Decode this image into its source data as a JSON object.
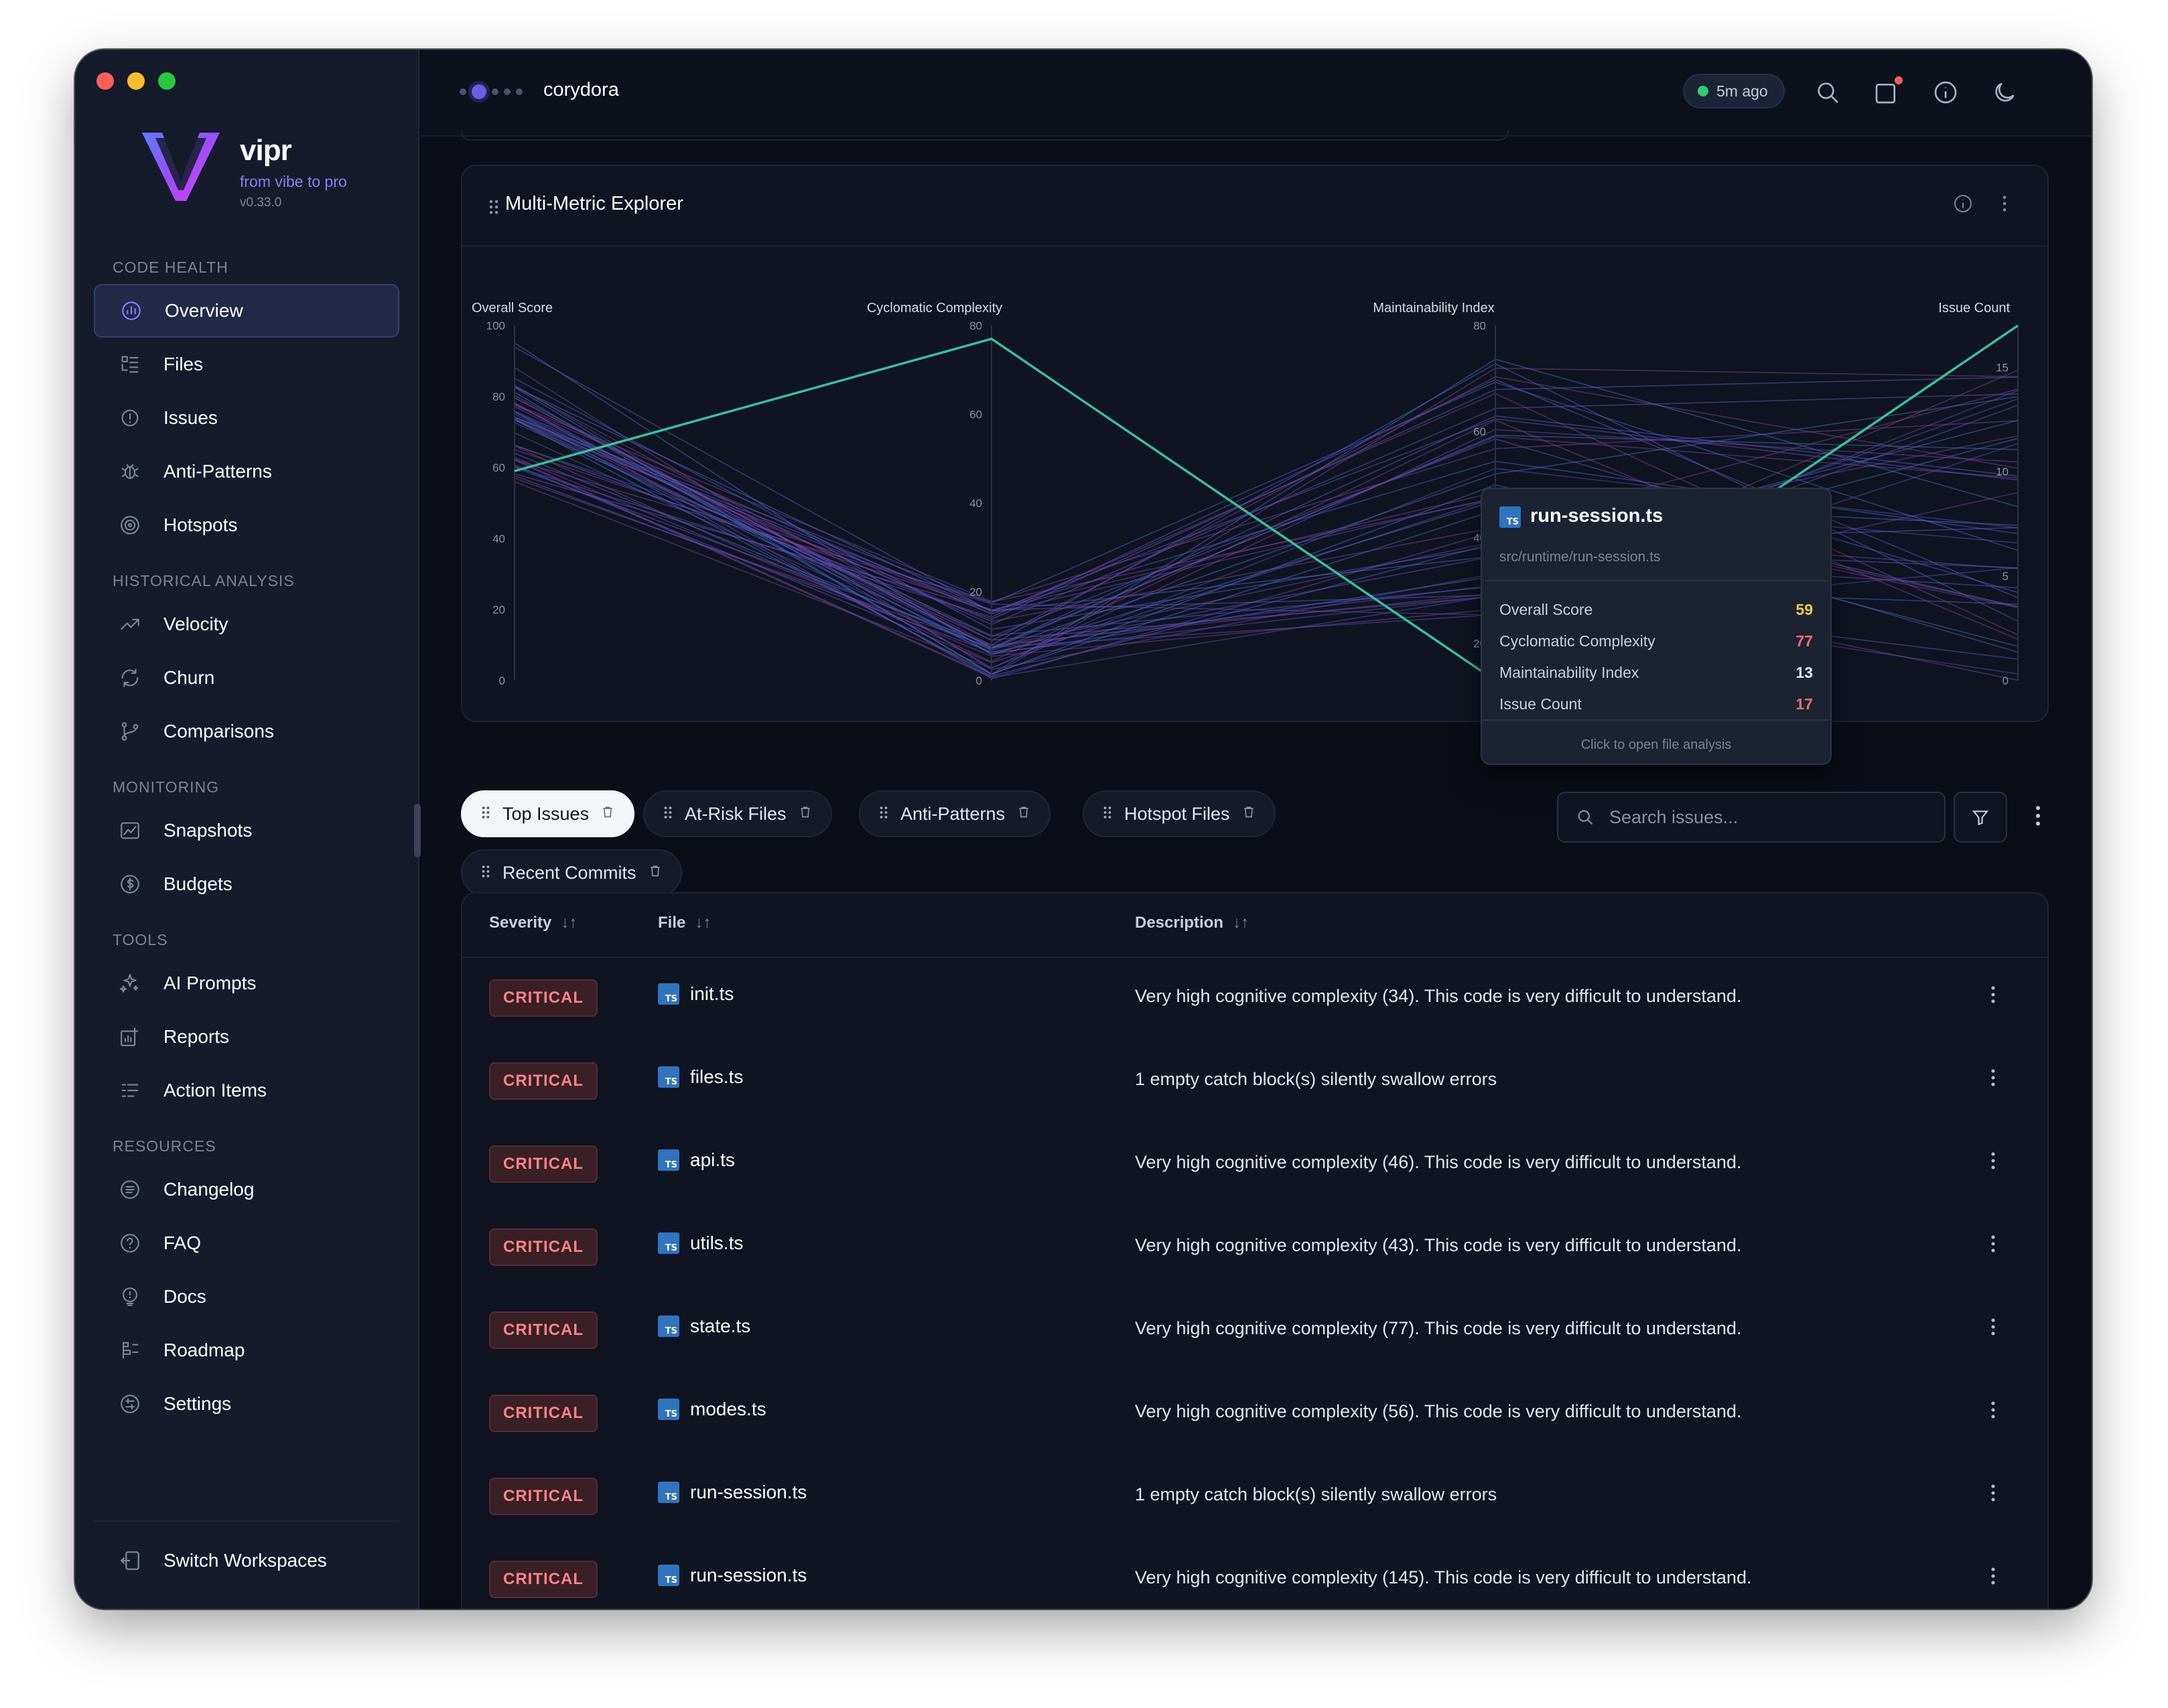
{
  "app": {
    "name": "vipr",
    "tagline": "from vibe to pro",
    "version": "v0.33.0"
  },
  "sidebar": {
    "sections": [
      {
        "heading": "CODE HEALTH",
        "items": [
          {
            "label": "Overview",
            "icon": "overview-icon",
            "active": true
          },
          {
            "label": "Files",
            "icon": "files-icon"
          },
          {
            "label": "Issues",
            "icon": "issues-icon"
          },
          {
            "label": "Anti-Patterns",
            "icon": "bug-icon"
          },
          {
            "label": "Hotspots",
            "icon": "target-icon"
          }
        ]
      },
      {
        "heading": "HISTORICAL ANALYSIS",
        "items": [
          {
            "label": "Velocity",
            "icon": "trend-icon"
          },
          {
            "label": "Churn",
            "icon": "refresh-icon"
          },
          {
            "label": "Comparisons",
            "icon": "branch-icon"
          }
        ]
      },
      {
        "heading": "MONITORING",
        "items": [
          {
            "label": "Snapshots",
            "icon": "chart-icon"
          },
          {
            "label": "Budgets",
            "icon": "dollar-icon"
          }
        ]
      },
      {
        "heading": "TOOLS",
        "items": [
          {
            "label": "AI Prompts",
            "icon": "sparkle-icon"
          },
          {
            "label": "Reports",
            "icon": "report-icon"
          },
          {
            "label": "Action Items",
            "icon": "checklist-icon"
          }
        ]
      },
      {
        "heading": "RESOURCES",
        "items": [
          {
            "label": "Changelog",
            "icon": "list-icon"
          },
          {
            "label": "FAQ",
            "icon": "help-icon"
          },
          {
            "label": "Docs",
            "icon": "docs-icon"
          },
          {
            "label": "Roadmap",
            "icon": "roadmap-icon"
          },
          {
            "label": "Settings",
            "icon": "settings-icon"
          }
        ]
      }
    ],
    "switch_workspaces": "Switch Workspaces"
  },
  "topbar": {
    "workspace": "corydora",
    "status": "5m ago",
    "status_color": "#2ecc71"
  },
  "chart_card": {
    "title": "Multi-Metric Explorer"
  },
  "chart_data": {
    "type": "parallel-coordinates",
    "axes": [
      {
        "name": "Overall Score",
        "range": [
          0,
          100
        ],
        "ticks": [
          0,
          20,
          40,
          60,
          80,
          100
        ]
      },
      {
        "name": "Cyclomatic Complexity",
        "range": [
          0,
          80
        ],
        "ticks": [
          0,
          20,
          40,
          60,
          80
        ]
      },
      {
        "name": "Maintainability Index",
        "range": [
          13,
          80
        ],
        "ticks": [
          20,
          40,
          60,
          80
        ]
      },
      {
        "name": "Issue Count",
        "range": [
          0,
          17
        ],
        "ticks": [
          0,
          5,
          10,
          15
        ]
      }
    ],
    "highlighted": {
      "file": "run-session.ts",
      "values": [
        59,
        77,
        13,
        17
      ]
    },
    "highlight_color": "#36c19a"
  },
  "tooltip": {
    "file": "run-session.ts",
    "path": "src/runtime/run-session.ts",
    "metrics": [
      {
        "label": "Overall Score",
        "value": "59",
        "color": "#f2c94c"
      },
      {
        "label": "Cyclomatic Complexity",
        "value": "77",
        "color": "#ff6b6b"
      },
      {
        "label": "Maintainability Index",
        "value": "13",
        "color": "#e6e8ef"
      },
      {
        "label": "Issue Count",
        "value": "17",
        "color": "#ff6b6b"
      }
    ],
    "footer": "Click to open file analysis"
  },
  "tabs": [
    {
      "label": "Top Issues",
      "active": true
    },
    {
      "label": "At-Risk Files"
    },
    {
      "label": "Anti-Patterns"
    },
    {
      "label": "Hotspot Files"
    },
    {
      "label": "Recent Commits"
    }
  ],
  "search": {
    "placeholder": "Search issues..."
  },
  "table": {
    "columns": [
      "Severity",
      "File",
      "Description"
    ],
    "rows": [
      {
        "severity": "CRITICAL",
        "file": "init.ts",
        "description": "Very high cognitive complexity (34). This code is very difficult to understand."
      },
      {
        "severity": "CRITICAL",
        "file": "files.ts",
        "description": "1 empty catch block(s) silently swallow errors"
      },
      {
        "severity": "CRITICAL",
        "file": "api.ts",
        "description": "Very high cognitive complexity (46). This code is very difficult to understand."
      },
      {
        "severity": "CRITICAL",
        "file": "utils.ts",
        "description": "Very high cognitive complexity (43). This code is very difficult to understand."
      },
      {
        "severity": "CRITICAL",
        "file": "state.ts",
        "description": "Very high cognitive complexity (77). This code is very difficult to understand."
      },
      {
        "severity": "CRITICAL",
        "file": "modes.ts",
        "description": "Very high cognitive complexity (56). This code is very difficult to understand."
      },
      {
        "severity": "CRITICAL",
        "file": "run-session.ts",
        "description": "1 empty catch block(s) silently swallow errors"
      },
      {
        "severity": "CRITICAL",
        "file": "run-session.ts",
        "description": "Very high cognitive complexity (145). This code is very difficult to understand."
      }
    ]
  }
}
